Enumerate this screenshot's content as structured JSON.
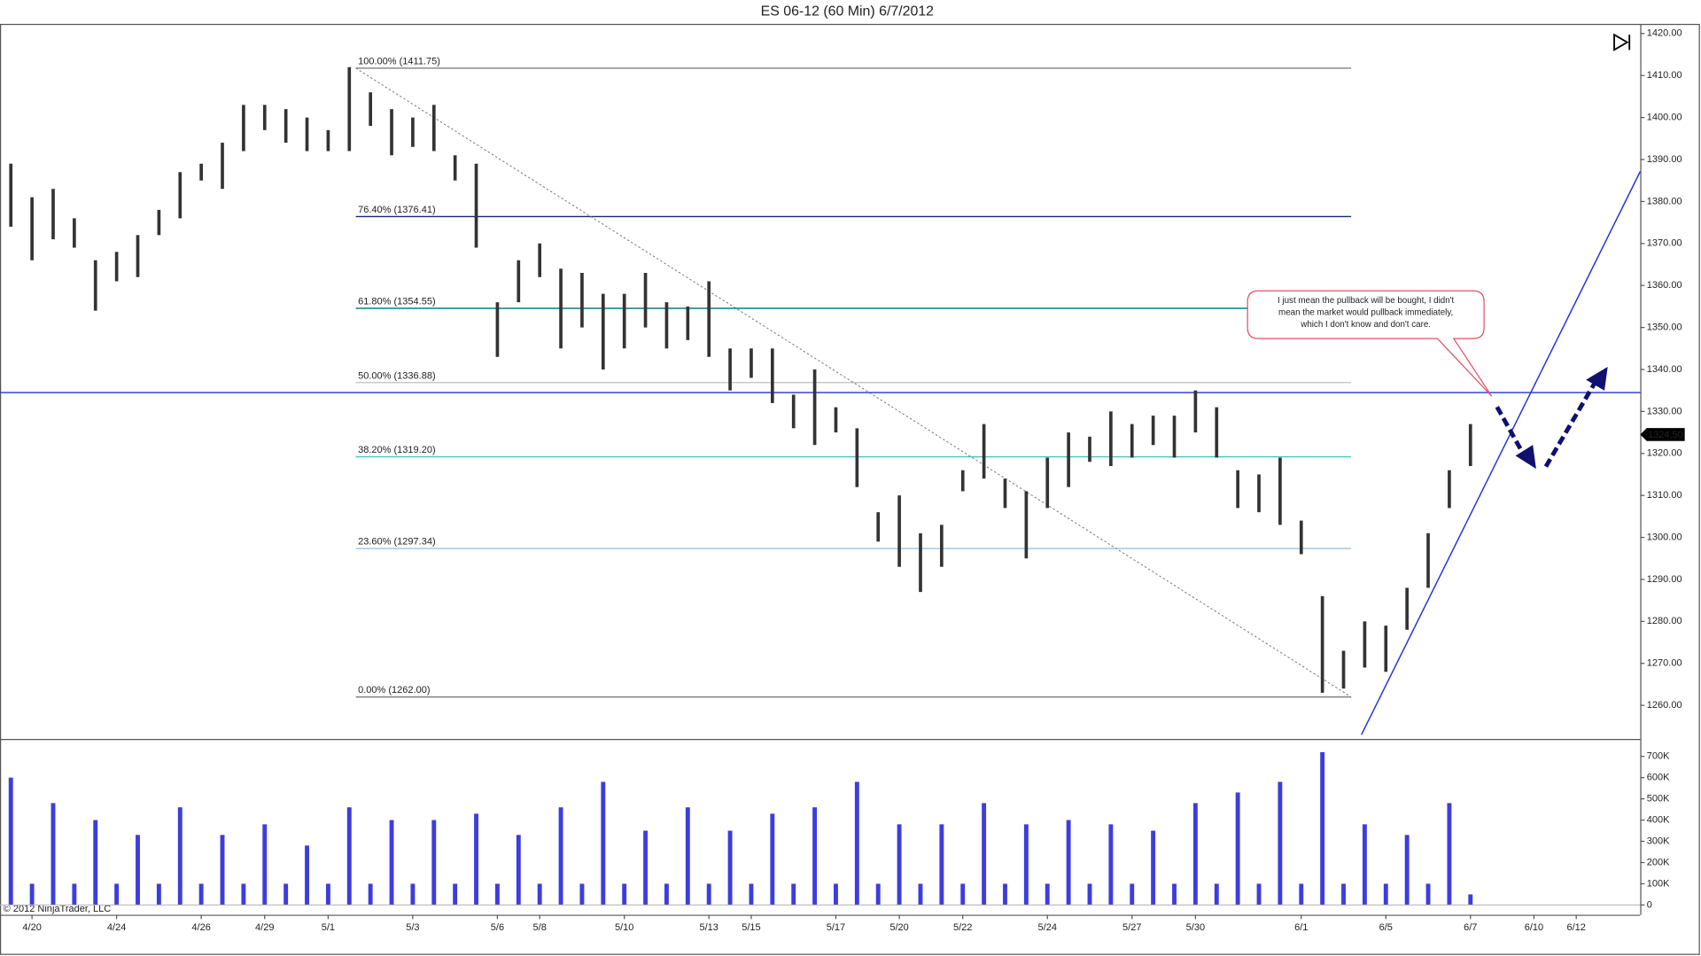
{
  "chart_data": [
    {
      "type": "hilo",
      "title": "ES 06-12 (60 Min)  6/7/2012",
      "color": "#333333",
      "categories": [
        null,
        "4/20",
        null,
        null,
        null,
        "4/24",
        null,
        null,
        null,
        "4/26",
        null,
        null,
        "4/29",
        null,
        null,
        "5/1",
        null,
        null,
        null,
        "5/3",
        null,
        null,
        null,
        "5/6",
        null,
        "5/8",
        null,
        null,
        null,
        "5/10",
        null,
        null,
        null,
        "5/13",
        null,
        "5/15",
        null,
        null,
        null,
        "5/17",
        null,
        null,
        "5/20",
        null,
        null,
        "5/22",
        null,
        null,
        null,
        "5/24",
        null,
        null,
        null,
        "5/27",
        null,
        null,
        "5/30",
        null,
        null,
        null,
        null,
        "6/1",
        null,
        null,
        null,
        "6/5",
        null,
        null,
        null,
        "6/7",
        null,
        null,
        "6/10",
        null,
        "6/12",
        null
      ],
      "high": [
        1389,
        1381,
        1383,
        1376,
        1366,
        1368,
        1372,
        1378,
        1387,
        1389,
        1394,
        1403,
        1403,
        1402,
        1400,
        1397,
        1412,
        1406,
        1402,
        1400,
        1403,
        1391,
        1389,
        1356,
        1366,
        1370,
        1364,
        1363,
        1358,
        1358,
        1363,
        1356,
        1355,
        1361,
        1345,
        1345,
        1345,
        1334,
        1340,
        1331,
        1326,
        1306,
        1310,
        1301,
        1303,
        1316,
        1327,
        1314,
        1311,
        1319,
        1325,
        1324,
        1330,
        1327,
        1329,
        1329,
        1335,
        1331,
        1316,
        1315,
        1319,
        1304,
        1286,
        1273,
        1280,
        1279,
        1288,
        1301,
        1316,
        1327,
        null,
        null,
        null,
        null,
        null,
        null
      ],
      "low": [
        1374,
        1366,
        1371,
        1369,
        1354,
        1361,
        1362,
        1372,
        1376,
        1385,
        1383,
        1392,
        1397,
        1394,
        1392,
        1392,
        1392,
        1398,
        1391,
        1393,
        1392,
        1385,
        1369,
        1343,
        1356,
        1362,
        1345,
        1350,
        1340,
        1345,
        1350,
        1345,
        1347,
        1343,
        1335,
        1338,
        1332,
        1326,
        1322,
        1325,
        1312,
        1299,
        1293,
        1287,
        1293,
        1311,
        1314,
        1307,
        1295,
        1307,
        1312,
        1318,
        1317,
        1319,
        1322,
        1319,
        1325,
        1319,
        1307,
        1306,
        1303,
        1296,
        1263,
        1264,
        1269,
        1268,
        1278,
        1288,
        1307,
        1317,
        null,
        null,
        null,
        null,
        null,
        null
      ],
      "ylim": [
        1252,
        1422.3
      ],
      "yticks": [
        {
          "value": 1260,
          "label": "1260.00"
        },
        {
          "value": 1270,
          "label": "1270.00"
        },
        {
          "value": 1280,
          "label": "1280.00"
        },
        {
          "value": 1290,
          "label": "1290.00"
        },
        {
          "value": 1300,
          "label": "1300.00"
        },
        {
          "value": 1310,
          "label": "1310.00"
        },
        {
          "value": 1320,
          "label": "1320.00"
        },
        {
          "value": 1330,
          "label": "1330.00"
        },
        {
          "value": 1340,
          "label": "1340.00"
        },
        {
          "value": 1350,
          "label": "1350.00"
        },
        {
          "value": 1360,
          "label": "1360.00"
        },
        {
          "value": 1370,
          "label": "1370.00"
        },
        {
          "value": 1380,
          "label": "1380.00"
        },
        {
          "value": 1390,
          "label": "1390.00"
        },
        {
          "value": 1400,
          "label": "1400.00"
        },
        {
          "value": 1410,
          "label": "1410.00"
        },
        {
          "value": 1420,
          "label": "1420.00"
        }
      ],
      "last_price": {
        "value": 1324.5,
        "label": "1324.50"
      },
      "horizontal_line": 1334.5,
      "fib_levels": [
        {
          "label": "100.00% (1411.75)",
          "value": 1411.75,
          "color": "#808080"
        },
        {
          "label": "76.40% (1376.41)",
          "value": 1376.41,
          "color": "#1a237e"
        },
        {
          "label": "61.80% (1354.55)",
          "value": 1354.55,
          "color": "#008080"
        },
        {
          "label": "50.00% (1336.88)",
          "value": 1336.88,
          "color": "#c8c8c8"
        },
        {
          "label": "38.20% (1319.20)",
          "value": 1319.2,
          "color": "#40c8c0"
        },
        {
          "label": "23.60% (1297.34)",
          "value": 1297.34,
          "color": "#a8c8e0"
        },
        {
          "label": "0.00% (1262.00)",
          "value": 1262,
          "color": "#808080"
        }
      ],
      "annotation": [
        "I just mean the pullback will be bought, I didn't",
        "mean the market would pullback immediately,",
        "which I don't know and don't care."
      ]
    },
    {
      "type": "bar",
      "color": "#3d3dde",
      "values": [
        600000,
        100000,
        480000,
        100000,
        400000,
        100000,
        330000,
        100000,
        460000,
        100000,
        330000,
        100000,
        380000,
        100000,
        280000,
        100000,
        460000,
        100000,
        400000,
        100000,
        400000,
        100000,
        430000,
        100000,
        330000,
        100000,
        460000,
        100000,
        580000,
        100000,
        350000,
        100000,
        460000,
        100000,
        350000,
        100000,
        430000,
        100000,
        460000,
        100000,
        580000,
        100000,
        380000,
        100000,
        380000,
        100000,
        480000,
        100000,
        380000,
        100000,
        400000,
        100000,
        380000,
        100000,
        350000,
        100000,
        480000,
        100000,
        530000,
        100000,
        580000,
        100000,
        720000,
        100000,
        380000,
        100000,
        330000,
        100000,
        480000,
        50000,
        null,
        null,
        null,
        null,
        null,
        null
      ],
      "ylim": [
        -46000,
        782000
      ],
      "yticks": [
        0,
        {
          "value": 100000,
          "label": "100K"
        },
        {
          "value": 200000,
          "label": "200K"
        },
        {
          "value": 300000,
          "label": "300K"
        },
        {
          "value": 400000,
          "label": "400K"
        },
        {
          "value": 500000,
          "label": "500K"
        },
        {
          "value": 600000,
          "label": "600K"
        },
        {
          "value": 700000,
          "label": "700K"
        }
      ],
      "copyright": "© 2012 NinjaTrader, LLC"
    }
  ]
}
